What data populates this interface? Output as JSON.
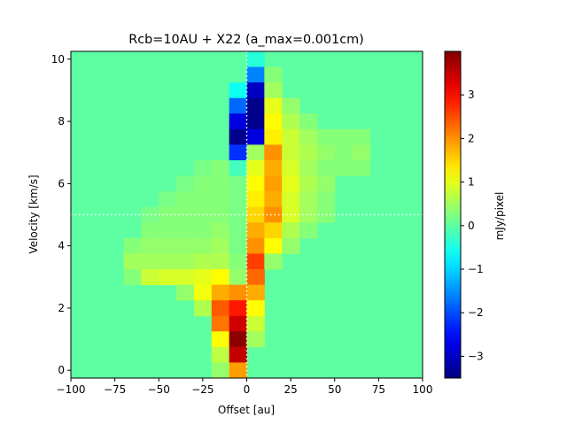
{
  "chart_data": {
    "type": "heatmap",
    "title": "Rcb=10AU + X22 (a_max=0.001cm)",
    "xlabel": "Offset [au]",
    "ylabel": "Velocity [km/s]",
    "colorbar_label": "mJy/pixel",
    "colormap": "jet",
    "xlim": [
      -100,
      100
    ],
    "ylim": [
      -0.25,
      10.25
    ],
    "vmin": -3.5,
    "vmax": 4.0,
    "x_ticks": [
      -100,
      -75,
      -50,
      -25,
      0,
      25,
      50,
      75,
      100
    ],
    "x_tick_labels": [
      "−100",
      "−75",
      "−50",
      "−25",
      "0",
      "25",
      "50",
      "75",
      "100"
    ],
    "y_ticks": [
      0,
      2,
      4,
      6,
      8,
      10
    ],
    "y_tick_labels": [
      "0",
      "2",
      "4",
      "6",
      "8",
      "10"
    ],
    "colorbar_ticks": [
      -3,
      -2,
      -1,
      0,
      1,
      2,
      3
    ],
    "colorbar_tick_labels": [
      "−3",
      "−2",
      "−1",
      "0",
      "1",
      "2",
      "3"
    ],
    "reference_lines": {
      "vertical_offset": 0,
      "horizontal_velocity": 5.0,
      "style": "dotted",
      "color": "#ffffff"
    },
    "cell_width_au": 10,
    "cell_height_kms": 0.5,
    "background_value": 0,
    "cells": [
      {
        "x": 5,
        "v": 10.0,
        "value": -0.4
      },
      {
        "x": 5,
        "v": 9.5,
        "value": -1.6
      },
      {
        "x": 15,
        "v": 9.5,
        "value": 0.3
      },
      {
        "x": -5,
        "v": 9.0,
        "value": -0.6
      },
      {
        "x": 5,
        "v": 9.0,
        "value": -3.0
      },
      {
        "x": 15,
        "v": 9.0,
        "value": 0.5
      },
      {
        "x": -5,
        "v": 8.5,
        "value": -1.8
      },
      {
        "x": 5,
        "v": 8.5,
        "value": -3.4
      },
      {
        "x": 15,
        "v": 8.5,
        "value": 1.0
      },
      {
        "x": 25,
        "v": 8.5,
        "value": 0.4
      },
      {
        "x": -5,
        "v": 8.0,
        "value": -2.8
      },
      {
        "x": 5,
        "v": 8.0,
        "value": -3.4
      },
      {
        "x": 15,
        "v": 8.0,
        "value": 1.2
      },
      {
        "x": 25,
        "v": 8.0,
        "value": 0.6
      },
      {
        "x": 35,
        "v": 8.0,
        "value": 0.3
      },
      {
        "x": -5,
        "v": 7.5,
        "value": -3.4
      },
      {
        "x": 5,
        "v": 7.5,
        "value": -2.8
      },
      {
        "x": 15,
        "v": 7.5,
        "value": 1.3
      },
      {
        "x": 25,
        "v": 7.5,
        "value": 0.8
      },
      {
        "x": 35,
        "v": 7.5,
        "value": 0.5
      },
      {
        "x": 45,
        "v": 7.5,
        "value": 0.3
      },
      {
        "x": 55,
        "v": 7.5,
        "value": 0.3
      },
      {
        "x": 65,
        "v": 7.5,
        "value": 0.3
      },
      {
        "x": -5,
        "v": 7.0,
        "value": -2.2
      },
      {
        "x": 5,
        "v": 7.0,
        "value": 0.5
      },
      {
        "x": 15,
        "v": 7.0,
        "value": 2.0
      },
      {
        "x": 25,
        "v": 7.0,
        "value": 0.8
      },
      {
        "x": 35,
        "v": 7.0,
        "value": 0.6
      },
      {
        "x": 45,
        "v": 7.0,
        "value": 0.4
      },
      {
        "x": 55,
        "v": 7.0,
        "value": 0.3
      },
      {
        "x": 65,
        "v": 7.0,
        "value": 0.4
      },
      {
        "x": -25,
        "v": 6.5,
        "value": 0.2
      },
      {
        "x": -15,
        "v": 6.5,
        "value": 0.3
      },
      {
        "x": -5,
        "v": 6.5,
        "value": -0.2
      },
      {
        "x": 5,
        "v": 6.5,
        "value": 1.0
      },
      {
        "x": 15,
        "v": 6.5,
        "value": 1.8
      },
      {
        "x": 25,
        "v": 6.5,
        "value": 0.9
      },
      {
        "x": 35,
        "v": 6.5,
        "value": 0.5
      },
      {
        "x": 45,
        "v": 6.5,
        "value": 0.3
      },
      {
        "x": 55,
        "v": 6.5,
        "value": 0.3
      },
      {
        "x": 65,
        "v": 6.5,
        "value": 0.3
      },
      {
        "x": -35,
        "v": 6.0,
        "value": 0.2
      },
      {
        "x": -25,
        "v": 6.0,
        "value": 0.3
      },
      {
        "x": -15,
        "v": 6.0,
        "value": 0.3
      },
      {
        "x": -5,
        "v": 6.0,
        "value": 0.2
      },
      {
        "x": 5,
        "v": 6.0,
        "value": 1.2
      },
      {
        "x": 15,
        "v": 6.0,
        "value": 1.9
      },
      {
        "x": 25,
        "v": 6.0,
        "value": 1.0
      },
      {
        "x": 35,
        "v": 6.0,
        "value": 0.6
      },
      {
        "x": 45,
        "v": 6.0,
        "value": 0.4
      },
      {
        "x": -45,
        "v": 5.5,
        "value": 0.2
      },
      {
        "x": -35,
        "v": 5.5,
        "value": 0.3
      },
      {
        "x": -25,
        "v": 5.5,
        "value": 0.3
      },
      {
        "x": -15,
        "v": 5.5,
        "value": 0.3
      },
      {
        "x": -5,
        "v": 5.5,
        "value": 0.2
      },
      {
        "x": 5,
        "v": 5.5,
        "value": 1.3
      },
      {
        "x": 15,
        "v": 5.5,
        "value": 1.8
      },
      {
        "x": 25,
        "v": 5.5,
        "value": 0.9
      },
      {
        "x": 35,
        "v": 5.5,
        "value": 0.5
      },
      {
        "x": 45,
        "v": 5.5,
        "value": 0.3
      },
      {
        "x": -55,
        "v": 5.0,
        "value": 0.2
      },
      {
        "x": -45,
        "v": 5.0,
        "value": 0.3
      },
      {
        "x": -35,
        "v": 5.0,
        "value": 0.3
      },
      {
        "x": -25,
        "v": 5.0,
        "value": 0.3
      },
      {
        "x": -15,
        "v": 5.0,
        "value": 0.3
      },
      {
        "x": -5,
        "v": 5.0,
        "value": 0.2
      },
      {
        "x": 5,
        "v": 5.0,
        "value": 1.5
      },
      {
        "x": 15,
        "v": 5.0,
        "value": 2.0
      },
      {
        "x": 25,
        "v": 5.0,
        "value": 0.9
      },
      {
        "x": 35,
        "v": 5.0,
        "value": 0.5
      },
      {
        "x": 45,
        "v": 5.0,
        "value": 0.3
      },
      {
        "x": -55,
        "v": 4.5,
        "value": 0.3
      },
      {
        "x": -45,
        "v": 4.5,
        "value": 0.3
      },
      {
        "x": -35,
        "v": 4.5,
        "value": 0.3
      },
      {
        "x": -25,
        "v": 4.5,
        "value": 0.3
      },
      {
        "x": -15,
        "v": 4.5,
        "value": 0.4
      },
      {
        "x": -5,
        "v": 4.5,
        "value": 0.2
      },
      {
        "x": 5,
        "v": 4.5,
        "value": 1.8
      },
      {
        "x": 15,
        "v": 4.5,
        "value": 1.5
      },
      {
        "x": 25,
        "v": 4.5,
        "value": 0.6
      },
      {
        "x": 35,
        "v": 4.5,
        "value": 0.3
      },
      {
        "x": -65,
        "v": 4.0,
        "value": 0.3
      },
      {
        "x": -55,
        "v": 4.0,
        "value": 0.4
      },
      {
        "x": -45,
        "v": 4.0,
        "value": 0.4
      },
      {
        "x": -35,
        "v": 4.0,
        "value": 0.4
      },
      {
        "x": -25,
        "v": 4.0,
        "value": 0.4
      },
      {
        "x": -15,
        "v": 4.0,
        "value": 0.5
      },
      {
        "x": -5,
        "v": 4.0,
        "value": 0.2
      },
      {
        "x": 5,
        "v": 4.0,
        "value": 2.0
      },
      {
        "x": 15,
        "v": 4.0,
        "value": 1.2
      },
      {
        "x": 25,
        "v": 4.0,
        "value": 0.4
      },
      {
        "x": -65,
        "v": 3.5,
        "value": 0.5
      },
      {
        "x": -55,
        "v": 3.5,
        "value": 0.5
      },
      {
        "x": -45,
        "v": 3.5,
        "value": 0.5
      },
      {
        "x": -35,
        "v": 3.5,
        "value": 0.5
      },
      {
        "x": -25,
        "v": 3.5,
        "value": 0.6
      },
      {
        "x": -15,
        "v": 3.5,
        "value": 0.6
      },
      {
        "x": -5,
        "v": 3.5,
        "value": 0.3
      },
      {
        "x": 5,
        "v": 3.5,
        "value": 2.6
      },
      {
        "x": 15,
        "v": 3.5,
        "value": 0.4
      },
      {
        "x": -65,
        "v": 3.0,
        "value": 0.3
      },
      {
        "x": -55,
        "v": 3.0,
        "value": 0.8
      },
      {
        "x": -45,
        "v": 3.0,
        "value": 0.9
      },
      {
        "x": -35,
        "v": 3.0,
        "value": 0.9
      },
      {
        "x": -25,
        "v": 3.0,
        "value": 1.0
      },
      {
        "x": -15,
        "v": 3.0,
        "value": 1.2
      },
      {
        "x": -5,
        "v": 3.0,
        "value": 0.4
      },
      {
        "x": 5,
        "v": 3.0,
        "value": 2.3
      },
      {
        "x": -35,
        "v": 2.5,
        "value": 0.4
      },
      {
        "x": -25,
        "v": 2.5,
        "value": 1.1
      },
      {
        "x": -15,
        "v": 2.5,
        "value": 1.8
      },
      {
        "x": -5,
        "v": 2.5,
        "value": 2.0
      },
      {
        "x": 5,
        "v": 2.5,
        "value": 1.8
      },
      {
        "x": -25,
        "v": 2.0,
        "value": 0.6
      },
      {
        "x": -15,
        "v": 2.0,
        "value": 2.4
      },
      {
        "x": -5,
        "v": 2.0,
        "value": 2.9
      },
      {
        "x": 5,
        "v": 2.0,
        "value": 1.2
      },
      {
        "x": -15,
        "v": 1.5,
        "value": 2.2
      },
      {
        "x": -5,
        "v": 1.5,
        "value": 3.4
      },
      {
        "x": 5,
        "v": 1.5,
        "value": 0.8
      },
      {
        "x": -15,
        "v": 1.0,
        "value": 1.2
      },
      {
        "x": -5,
        "v": 1.0,
        "value": 3.9
      },
      {
        "x": 5,
        "v": 1.0,
        "value": 0.5
      },
      {
        "x": -15,
        "v": 0.5,
        "value": 0.7
      },
      {
        "x": -5,
        "v": 0.5,
        "value": 3.5
      },
      {
        "x": -15,
        "v": 0.0,
        "value": 0.4
      },
      {
        "x": -5,
        "v": 0.0,
        "value": 1.9
      }
    ]
  }
}
